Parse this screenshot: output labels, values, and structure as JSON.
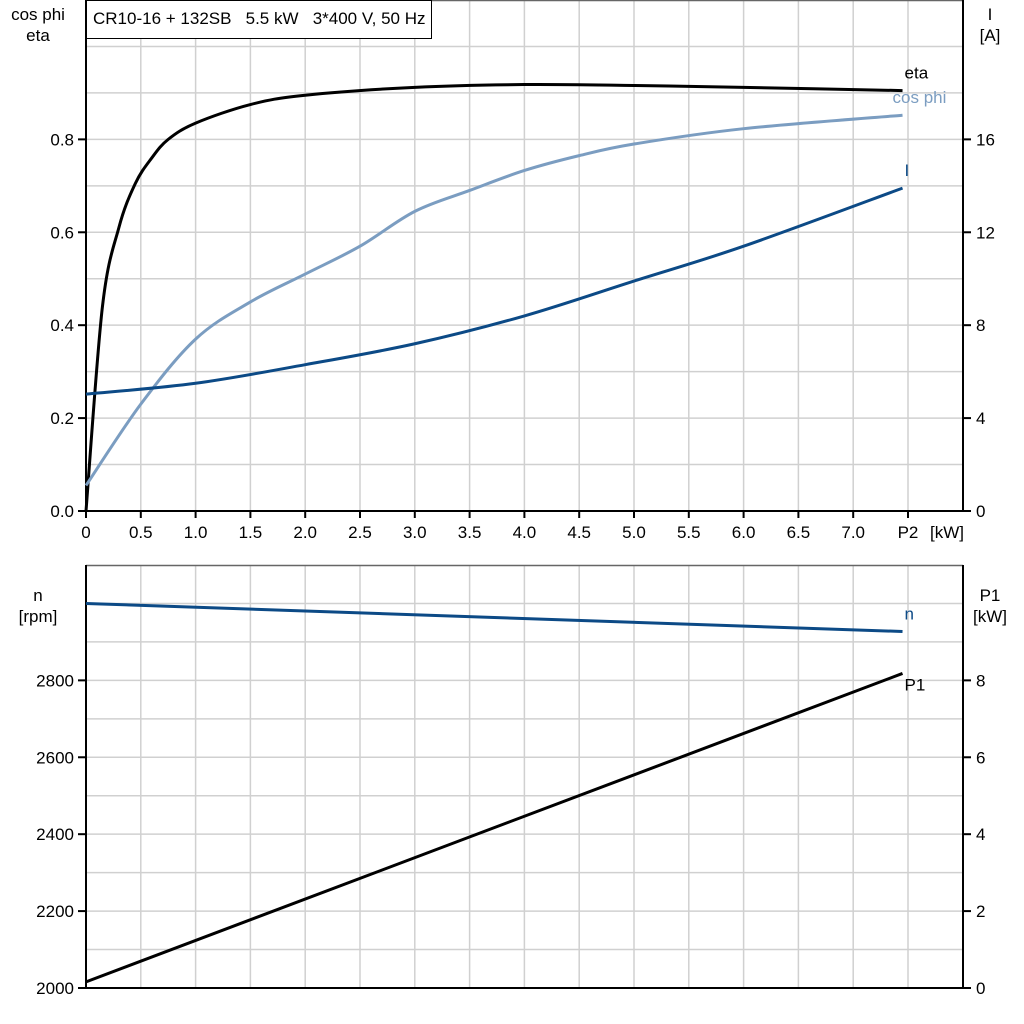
{
  "title": "CR10-16 + 132SB   5.5 kW   3*400 V, 50 Hz",
  "colors": {
    "eta": "#000000",
    "cos_phi": "#7b9dc1",
    "I": "#0c4a86",
    "n": "#0c4a86",
    "P1": "#000000",
    "grid": "#d0d0d0"
  },
  "chart_data": [
    {
      "type": "line",
      "x_label_unit": "[kW]",
      "x_label": "P2",
      "xlim": [
        0,
        8.0
      ],
      "x_ticks": [
        "0",
        "0.5",
        "1.0",
        "1.5",
        "2.0",
        "2.5",
        "3.0",
        "3.5",
        "4.0",
        "4.5",
        "5.0",
        "5.5",
        "6.0",
        "6.5",
        "7.0"
      ],
      "left_axis": {
        "label_lines": [
          "cos phi",
          "eta"
        ],
        "ylim": [
          0,
          1.1
        ],
        "ticks": [
          "0.0",
          "0.2",
          "0.4",
          "0.6",
          "0.8"
        ]
      },
      "right_axis": {
        "label_lines": [
          "I",
          "[A]"
        ],
        "ylim": [
          0,
          22
        ],
        "ticks": [
          "0",
          "4",
          "8",
          "12",
          "16"
        ]
      },
      "grid": true,
      "series": [
        {
          "name": "eta",
          "axis": "left",
          "x": [
            0,
            0.15,
            0.3,
            0.45,
            0.6,
            0.75,
            1.0,
            1.5,
            2.0,
            3.0,
            4.0,
            5.0,
            6.0,
            7.45
          ],
          "y": [
            0.0,
            0.44,
            0.61,
            0.705,
            0.76,
            0.8,
            0.835,
            0.875,
            0.895,
            0.912,
            0.918,
            0.916,
            0.912,
            0.905
          ]
        },
        {
          "name": "cos phi",
          "axis": "left",
          "x": [
            0,
            0.5,
            1.0,
            1.5,
            2.0,
            2.5,
            3.0,
            3.5,
            4.0,
            4.5,
            5.0,
            6.0,
            7.45
          ],
          "y": [
            0.055,
            0.23,
            0.37,
            0.45,
            0.51,
            0.57,
            0.645,
            0.69,
            0.733,
            0.765,
            0.79,
            0.823,
            0.852
          ]
        },
        {
          "name": "I",
          "axis": "right",
          "x": [
            0,
            1.0,
            2.0,
            3.0,
            4.0,
            5.0,
            6.0,
            7.45
          ],
          "y": [
            5.03,
            5.5,
            6.3,
            7.2,
            8.4,
            9.9,
            11.4,
            13.9
          ]
        }
      ]
    },
    {
      "type": "line",
      "xlim": [
        0,
        8.0
      ],
      "left_axis": {
        "label_lines": [
          "n",
          "[rpm]"
        ],
        "ylim": [
          2000,
          3100
        ],
        "ticks": [
          "2000",
          "2200",
          "2400",
          "2600",
          "2800"
        ]
      },
      "right_axis": {
        "label_lines": [
          "P1",
          "[kW]"
        ],
        "ylim": [
          0,
          11
        ],
        "ticks": [
          "0",
          "2",
          "4",
          "6",
          "8"
        ]
      },
      "grid": true,
      "series": [
        {
          "name": "n",
          "axis": "left",
          "x": [
            0,
            7.45
          ],
          "y": [
            3000,
            2927
          ]
        },
        {
          "name": "P1",
          "axis": "right",
          "x": [
            0,
            7.45
          ],
          "y": [
            0.16,
            8.18
          ]
        }
      ]
    }
  ]
}
